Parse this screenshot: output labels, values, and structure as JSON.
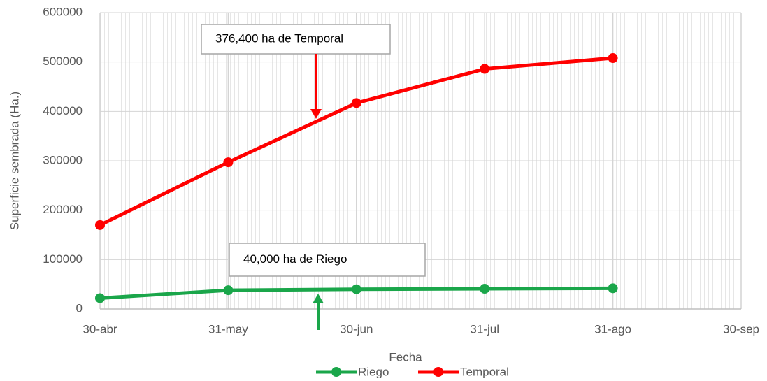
{
  "chart_data": {
    "type": "line",
    "x_label": "Fecha",
    "y_label": "Superficie sembrada (Ha.)",
    "categories": [
      "30-abr",
      "31-may",
      "30-jun",
      "31-jul",
      "31-ago",
      "30-sep"
    ],
    "series": [
      {
        "name": "Riego",
        "color": "#1aa64a",
        "values": [
          22000,
          38000,
          40000,
          41000,
          42000,
          null
        ]
      },
      {
        "name": "Temporal",
        "color": "#ff0000",
        "values": [
          170000,
          297000,
          417000,
          486000,
          508000,
          null
        ]
      }
    ],
    "ylim": [
      0,
      600000
    ],
    "yticks": [
      0,
      100000,
      200000,
      300000,
      400000,
      500000,
      600000
    ],
    "grid": true,
    "legend": "bottom",
    "annotations": [
      {
        "text": "376,400 ha de Temporal",
        "color": "#ff0000"
      },
      {
        "text": "40,000 ha de Riego",
        "color": "#1aa64a"
      }
    ]
  }
}
